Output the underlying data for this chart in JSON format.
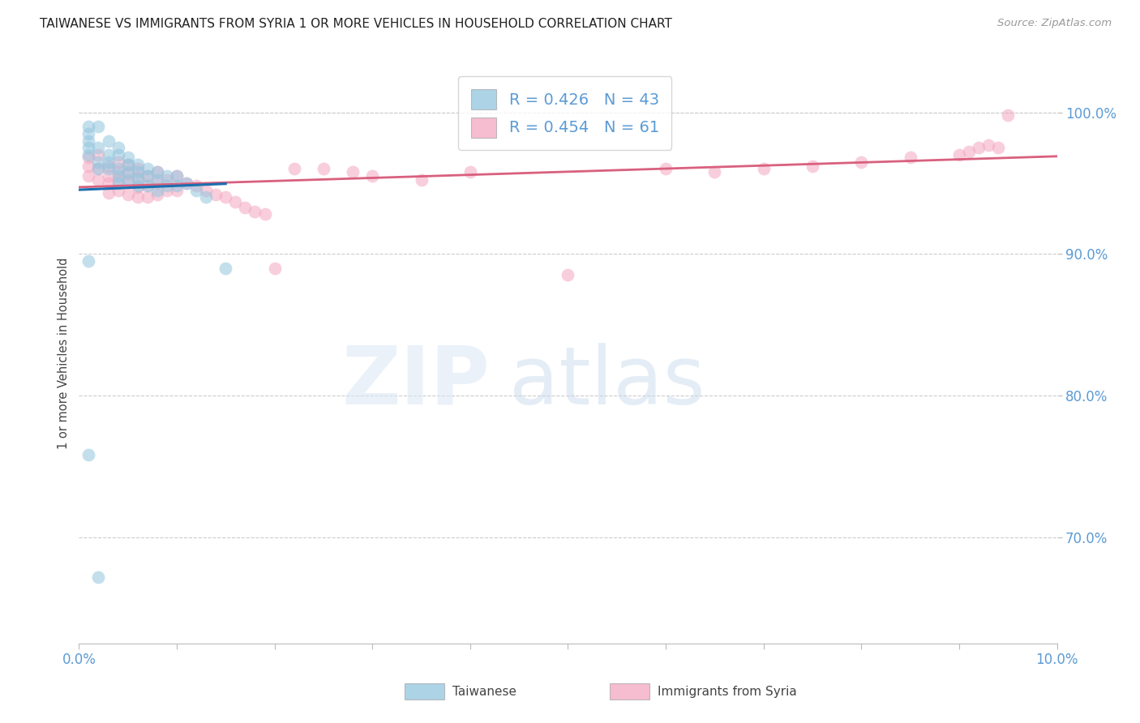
{
  "title": "TAIWANESE VS IMMIGRANTS FROM SYRIA 1 OR MORE VEHICLES IN HOUSEHOLD CORRELATION CHART",
  "source": "Source: ZipAtlas.com",
  "ylabel": "1 or more Vehicles in Household",
  "xmin": 0.0,
  "xmax": 0.1,
  "ymin": 0.625,
  "ymax": 1.035,
  "y_ticks": [
    0.7,
    0.8,
    0.9,
    1.0
  ],
  "y_tick_labels": [
    "70.0%",
    "80.0%",
    "90.0%",
    "100.0%"
  ],
  "x_ticks": [
    0.0,
    0.01,
    0.02,
    0.03,
    0.04,
    0.05,
    0.06,
    0.07,
    0.08,
    0.09,
    0.1
  ],
  "x_tick_labels": [
    "0.0%",
    "",
    "",
    "",
    "",
    "",
    "",
    "",
    "",
    "",
    "10.0%"
  ],
  "legend_label1": "Taiwanese",
  "legend_label2": "Immigrants from Syria",
  "r1": 0.426,
  "n1": 43,
  "r2": 0.454,
  "n2": 61,
  "color1": "#92c5de",
  "color2": "#f4a6c0",
  "line_color1": "#1a6faf",
  "line_color2": "#d9607e",
  "axis_color": "#5b9bd5",
  "tw_x": [
    0.001,
    0.001,
    0.001,
    0.001,
    0.001,
    0.002,
    0.002,
    0.002,
    0.002,
    0.003,
    0.003,
    0.003,
    0.003,
    0.004,
    0.004,
    0.004,
    0.004,
    0.004,
    0.005,
    0.005,
    0.005,
    0.005,
    0.006,
    0.006,
    0.006,
    0.006,
    0.007,
    0.007,
    0.007,
    0.008,
    0.008,
    0.008,
    0.009,
    0.009,
    0.01,
    0.01,
    0.011,
    0.012,
    0.013,
    0.015,
    0.001,
    0.001,
    0.002
  ],
  "tw_y": [
    0.99,
    0.985,
    0.98,
    0.975,
    0.97,
    0.99,
    0.975,
    0.965,
    0.96,
    0.98,
    0.97,
    0.965,
    0.96,
    0.975,
    0.97,
    0.96,
    0.955,
    0.95,
    0.968,
    0.963,
    0.958,
    0.952,
    0.963,
    0.958,
    0.953,
    0.948,
    0.96,
    0.955,
    0.948,
    0.958,
    0.952,
    0.945,
    0.955,
    0.948,
    0.955,
    0.948,
    0.95,
    0.945,
    0.94,
    0.89,
    0.895,
    0.758,
    0.672
  ],
  "sy_x": [
    0.001,
    0.001,
    0.001,
    0.002,
    0.002,
    0.002,
    0.003,
    0.003,
    0.003,
    0.003,
    0.004,
    0.004,
    0.004,
    0.004,
    0.005,
    0.005,
    0.005,
    0.005,
    0.006,
    0.006,
    0.006,
    0.006,
    0.007,
    0.007,
    0.007,
    0.008,
    0.008,
    0.008,
    0.009,
    0.009,
    0.01,
    0.01,
    0.011,
    0.012,
    0.013,
    0.014,
    0.015,
    0.016,
    0.017,
    0.018,
    0.019,
    0.02,
    0.022,
    0.025,
    0.028,
    0.03,
    0.035,
    0.04,
    0.05,
    0.06,
    0.065,
    0.07,
    0.075,
    0.08,
    0.085,
    0.09,
    0.091,
    0.092,
    0.093,
    0.094,
    0.095
  ],
  "sy_y": [
    0.968,
    0.962,
    0.955,
    0.97,
    0.96,
    0.952,
    0.962,
    0.955,
    0.95,
    0.943,
    0.965,
    0.958,
    0.952,
    0.945,
    0.963,
    0.957,
    0.951,
    0.942,
    0.96,
    0.954,
    0.947,
    0.94,
    0.955,
    0.948,
    0.94,
    0.958,
    0.95,
    0.942,
    0.952,
    0.945,
    0.955,
    0.945,
    0.95,
    0.948,
    0.945,
    0.942,
    0.94,
    0.937,
    0.933,
    0.93,
    0.928,
    0.89,
    0.96,
    0.96,
    0.958,
    0.955,
    0.952,
    0.958,
    0.885,
    0.96,
    0.958,
    0.96,
    0.962,
    0.965,
    0.968,
    0.97,
    0.972,
    0.975,
    0.977,
    0.975,
    0.998
  ]
}
